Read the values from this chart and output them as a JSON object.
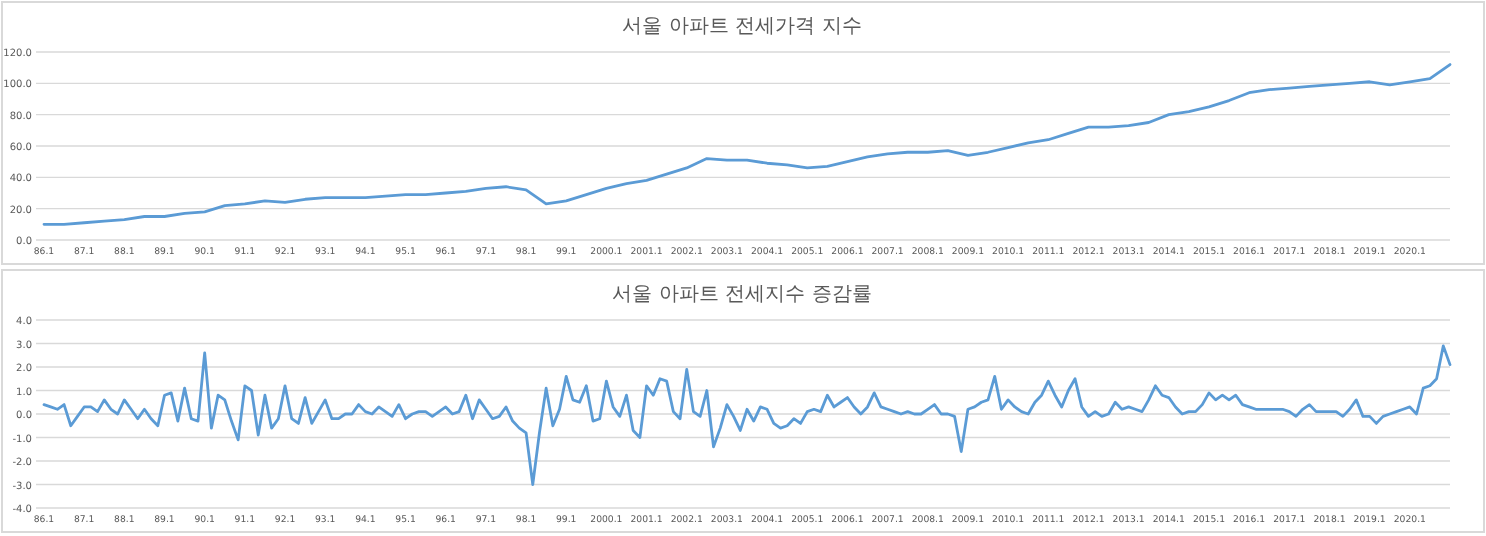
{
  "chart_data": [
    {
      "type": "line",
      "title": "서울 아파트 전세가격 지수",
      "grid": "y",
      "ylim": [
        0,
        120
      ],
      "yticks": [
        {
          "value": 0,
          "label": "0.0"
        },
        {
          "value": 20,
          "label": "20.0"
        },
        {
          "value": 40,
          "label": "40.0"
        },
        {
          "value": 60,
          "label": "60.0"
        },
        {
          "value": 80,
          "label": "80.0"
        },
        {
          "value": 100,
          "label": "100.0"
        },
        {
          "value": 120,
          "label": "120.0"
        }
      ],
      "categories": [
        "86.1",
        null,
        "87.1",
        null,
        "88.1",
        null,
        "89.1",
        null,
        "90.1",
        null,
        "91.1",
        null,
        "92.1",
        null,
        "93.1",
        null,
        "94.1",
        null,
        "95.1",
        null,
        "96.1",
        null,
        "97.1",
        null,
        "98.1",
        null,
        "99.1",
        null,
        "2000.1",
        null,
        "2001.1",
        null,
        "2002.1",
        null,
        "2003.1",
        null,
        "2004.1",
        null,
        "2005.1",
        null,
        "2006.1",
        null,
        "2007.1",
        null,
        "2008.1",
        null,
        "2009.1",
        null,
        "2010.1",
        null,
        "2011.1",
        null,
        "2012.1",
        null,
        "2013.1",
        null,
        "2014.1",
        null,
        "2015.1",
        null,
        "2016.1",
        null,
        "2017.1",
        null,
        "2018.1",
        null,
        "2019.1",
        null,
        "2020.1",
        null,
        null
      ],
      "series": [
        {
          "color": "#5b9bd5",
          "values": [
            10,
            10,
            11,
            12,
            13,
            15,
            15,
            17,
            18,
            22,
            23,
            25,
            24,
            26,
            27,
            27,
            27,
            28,
            29,
            29,
            30,
            31,
            33,
            34,
            32,
            23,
            25,
            29,
            33,
            36,
            38,
            42,
            46,
            52,
            51,
            51,
            49,
            48,
            46,
            47,
            50,
            53,
            55,
            56,
            56,
            57,
            54,
            56,
            59,
            62,
            64,
            68,
            72,
            72,
            73,
            75,
            80,
            82,
            85,
            89,
            94,
            96,
            97,
            98,
            99,
            100,
            101,
            99,
            101,
            103,
            112
          ]
        }
      ]
    },
    {
      "type": "line",
      "title": "서울 아파트 전세지수 증감률",
      "grid": "y",
      "ylim": [
        -4,
        4
      ],
      "yticks": [
        {
          "value": -4,
          "label": "-4.0"
        },
        {
          "value": -3,
          "label": "-3.0"
        },
        {
          "value": -2,
          "label": "-2.0"
        },
        {
          "value": -1,
          "label": "-1.0"
        },
        {
          "value": 0,
          "label": "0.0"
        },
        {
          "value": 1,
          "label": "1.0"
        },
        {
          "value": 2,
          "label": "2.0"
        },
        {
          "value": 3,
          "label": "3.0"
        },
        {
          "value": 4,
          "label": "4.0"
        }
      ],
      "categories": [
        "86.1",
        null,
        null,
        null,
        null,
        null,
        "87.1",
        null,
        null,
        null,
        null,
        null,
        "88.1",
        null,
        null,
        null,
        null,
        null,
        "89.1",
        null,
        null,
        null,
        null,
        null,
        "90.1",
        null,
        null,
        null,
        null,
        null,
        "91.1",
        null,
        null,
        null,
        null,
        null,
        "92.1",
        null,
        null,
        null,
        null,
        null,
        "93.1",
        null,
        null,
        null,
        null,
        null,
        "94.1",
        null,
        null,
        null,
        null,
        null,
        "95.1",
        null,
        null,
        null,
        null,
        null,
        "96.1",
        null,
        null,
        null,
        null,
        null,
        "97.1",
        null,
        null,
        null,
        null,
        null,
        "98.1",
        null,
        null,
        null,
        null,
        null,
        "99.1",
        null,
        null,
        null,
        null,
        null,
        "2000.1",
        null,
        null,
        null,
        null,
        null,
        "2001.1",
        null,
        null,
        null,
        null,
        null,
        "2002.1",
        null,
        null,
        null,
        null,
        null,
        "2003.1",
        null,
        null,
        null,
        null,
        null,
        "2004.1",
        null,
        null,
        null,
        null,
        null,
        "2005.1",
        null,
        null,
        null,
        null,
        null,
        "2006.1",
        null,
        null,
        null,
        null,
        null,
        "2007.1",
        null,
        null,
        null,
        null,
        null,
        "2008.1",
        null,
        null,
        null,
        null,
        null,
        "2009.1",
        null,
        null,
        null,
        null,
        null,
        "2010.1",
        null,
        null,
        null,
        null,
        null,
        "2011.1",
        null,
        null,
        null,
        null,
        null,
        "2012.1",
        null,
        null,
        null,
        null,
        null,
        "2013.1",
        null,
        null,
        null,
        null,
        null,
        "2014.1",
        null,
        null,
        null,
        null,
        null,
        "2015.1",
        null,
        null,
        null,
        null,
        null,
        "2016.1",
        null,
        null,
        null,
        null,
        null,
        "2017.1",
        null,
        null,
        null,
        null,
        null,
        "2018.1",
        null,
        null,
        null,
        null,
        null,
        "2019.1",
        null,
        null,
        null,
        null,
        null,
        "2020.1",
        null,
        null,
        null,
        null,
        null,
        null
      ],
      "series": [
        {
          "color": "#5b9bd5",
          "values": [
            0.4,
            0.3,
            0.2,
            0.4,
            -0.5,
            -0.1,
            0.3,
            0.3,
            0.1,
            0.6,
            0.2,
            0,
            0.6,
            0.2,
            -0.2,
            0.2,
            -0.2,
            -0.5,
            0.8,
            0.9,
            -0.3,
            1.1,
            -0.2,
            -0.3,
            2.6,
            -0.6,
            0.8,
            0.6,
            -0.3,
            -1.1,
            1.2,
            1.0,
            -0.9,
            0.8,
            -0.6,
            -0.2,
            1.2,
            -0.2,
            -0.4,
            0.7,
            -0.4,
            0.1,
            0.6,
            -0.2,
            -0.2,
            0,
            0,
            0.4,
            0.1,
            0,
            0.3,
            0.1,
            -0.1,
            0.4,
            -0.2,
            0,
            0.1,
            0.1,
            -0.1,
            0.1,
            0.3,
            0,
            0.1,
            0.8,
            -0.2,
            0.6,
            0.2,
            -0.2,
            -0.1,
            0.3,
            -0.3,
            -0.6,
            -0.8,
            -3.0,
            -0.8,
            1.1,
            -0.5,
            0.2,
            1.6,
            0.6,
            0.5,
            1.2,
            -0.3,
            -0.2,
            1.4,
            0.3,
            -0.1,
            0.8,
            -0.7,
            -1.0,
            1.2,
            0.8,
            1.5,
            1.4,
            0.1,
            -0.2,
            1.9,
            0.1,
            -0.1,
            1.0,
            -1.4,
            -0.6,
            0.4,
            -0.1,
            -0.7,
            0.2,
            -0.3,
            0.3,
            0.2,
            -0.4,
            -0.6,
            -0.5,
            -0.2,
            -0.4,
            0.1,
            0.2,
            0.1,
            0.8,
            0.3,
            0.5,
            0.7,
            0.3,
            0,
            0.3,
            0.9,
            0.3,
            0.2,
            0.1,
            0,
            0.1,
            0,
            0,
            0.2,
            0.4,
            0,
            0,
            -0.1,
            -1.6,
            0.2,
            0.3,
            0.5,
            0.6,
            1.6,
            0.2,
            0.6,
            0.3,
            0.1,
            0,
            0.5,
            0.8,
            1.4,
            0.8,
            0.3,
            1.0,
            1.5,
            0.3,
            -0.1,
            0.1,
            -0.1,
            0,
            0.5,
            0.2,
            0.3,
            0.2,
            0.1,
            0.6,
            1.2,
            0.8,
            0.7,
            0.3,
            0,
            0.1,
            0.1,
            0.4,
            0.9,
            0.6,
            0.8,
            0.6,
            0.8,
            0.4,
            0.3,
            0.2,
            0.2,
            0.2,
            0.2,
            0.2,
            0.1,
            -0.1,
            0.2,
            0.4,
            0.1,
            0.1,
            0.1,
            0.1,
            -0.1,
            0.2,
            0.6,
            -0.1,
            -0.1,
            -0.4,
            -0.1,
            0,
            0.1,
            0.2,
            0.3,
            0,
            1.1,
            1.2,
            1.5,
            2.9,
            2.1
          ]
        }
      ]
    }
  ]
}
